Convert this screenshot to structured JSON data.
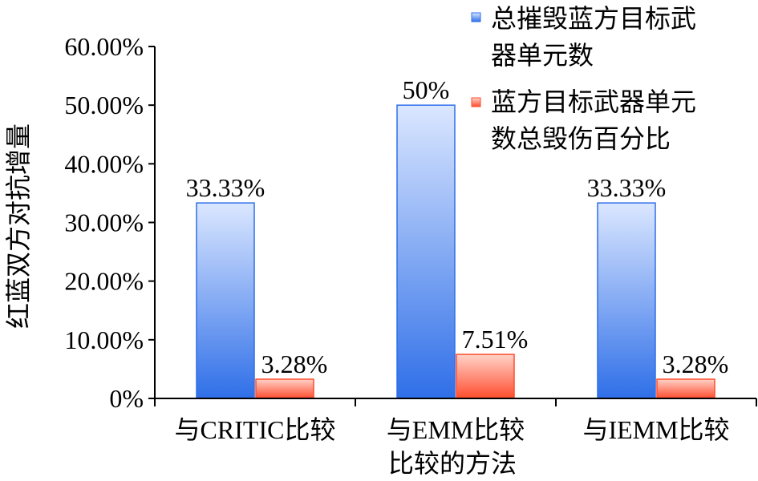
{
  "chart_data": {
    "type": "bar",
    "ylabel": "红蓝双方对抗增量",
    "xlabel": "比较的方法",
    "categories": [
      "与CRITIC比较",
      "与EMM比较",
      "与IEMM比较"
    ],
    "ylim": [
      0,
      60
    ],
    "y_ticks": [
      "0%",
      "10.00%",
      "20.00%",
      "30.00%",
      "40.00%",
      "50.00%",
      "60.00%"
    ],
    "grid": false,
    "legend_position": "top-right",
    "series": [
      {
        "name_lines": [
          "总摧毁蓝方目标武",
          "器单元数"
        ],
        "values": [
          33.33,
          50,
          33.33
        ],
        "labels": [
          "33.33%",
          "50%",
          "33.33%"
        ],
        "color": "#2f6fe8"
      },
      {
        "name_lines": [
          "蓝方目标武器单元",
          "数总毁伤百分比"
        ],
        "values": [
          3.28,
          7.51,
          3.28
        ],
        "labels": [
          "3.28%",
          "7.51%",
          "3.28%"
        ],
        "color": "#ff4d2e"
      }
    ]
  }
}
